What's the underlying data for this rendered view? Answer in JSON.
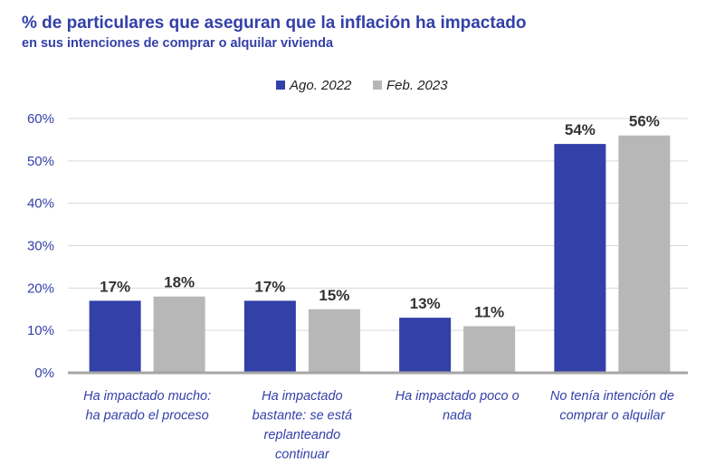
{
  "chart_data": {
    "type": "bar",
    "title": "% de particulares que aseguran que la inflación ha impactado",
    "subtitle": "en sus intenciones de comprar o alquilar vivienda",
    "categories": [
      [
        "Ha impactado mucho:",
        "ha parado el proceso"
      ],
      [
        "Ha impactado",
        "bastante: se está",
        "replanteando",
        "continuar"
      ],
      [
        "Ha impactado poco o",
        "nada"
      ],
      [
        "No tenía intención de",
        "comprar o alquilar"
      ]
    ],
    "series": [
      {
        "name": "Ago. 2022",
        "color": "#3340a8",
        "values": [
          17,
          17,
          13,
          54
        ],
        "labels": [
          "17%",
          "17%",
          "13%",
          "54%"
        ]
      },
      {
        "name": "Feb. 2023",
        "color": "#b7b7b7",
        "values": [
          18,
          15,
          11,
          56
        ],
        "labels": [
          "18%",
          "15%",
          "11%",
          "56%"
        ]
      }
    ],
    "ylim": [
      0,
      60
    ],
    "yticks": [
      "0%",
      "10%",
      "20%",
      "30%",
      "40%",
      "50%",
      "60%"
    ],
    "grid": true,
    "legend": "top-center",
    "xlabel": "",
    "ylabel": ""
  }
}
